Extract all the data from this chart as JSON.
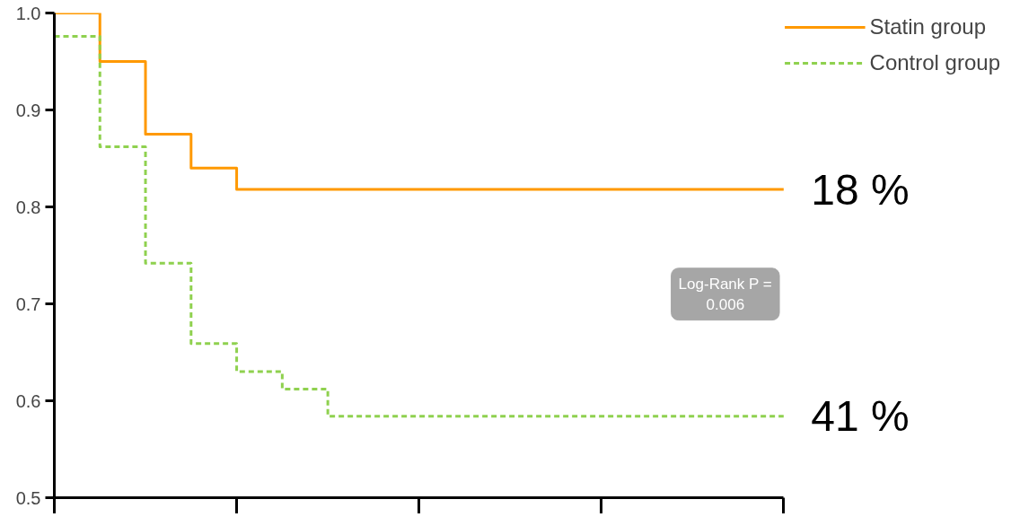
{
  "chart_data": {
    "type": "step",
    "categories": [
      null,
      null,
      null,
      null,
      null,
      null,
      null,
      null,
      null,
      null,
      null,
      null,
      null,
      null,
      null,
      null,
      null
    ],
    "series": [
      {
        "name": "Statin group",
        "color": "#ff9900",
        "line_style": "solid",
        "values": [
          1.0,
          0.95,
          0.875,
          0.84,
          0.818,
          0.818,
          0.818,
          0.818,
          0.818,
          0.818,
          0.818,
          0.818,
          0.818,
          0.818,
          0.818,
          0.818,
          0.818
        ]
      },
      {
        "name": "Control group",
        "color": "#8fd14f",
        "line_style": "dashed",
        "values": [
          0.976,
          0.862,
          0.742,
          0.659,
          0.63,
          0.612,
          0.584,
          0.584,
          0.584,
          0.584,
          0.584,
          0.584,
          0.584,
          0.584,
          0.584,
          0.584,
          0.584
        ]
      }
    ],
    "ylim": [
      0.5,
      1.0
    ],
    "yticks": [
      0.5,
      0.6,
      0.7,
      0.8,
      0.9,
      {
        "value": 1.0,
        "label": "1.0"
      }
    ],
    "tick_labels": "y",
    "grid": false,
    "legend": "top right",
    "marker": "none",
    "annotations": [
      "18 %",
      "41 %",
      "Log-Rank P = 0.006"
    ]
  }
}
